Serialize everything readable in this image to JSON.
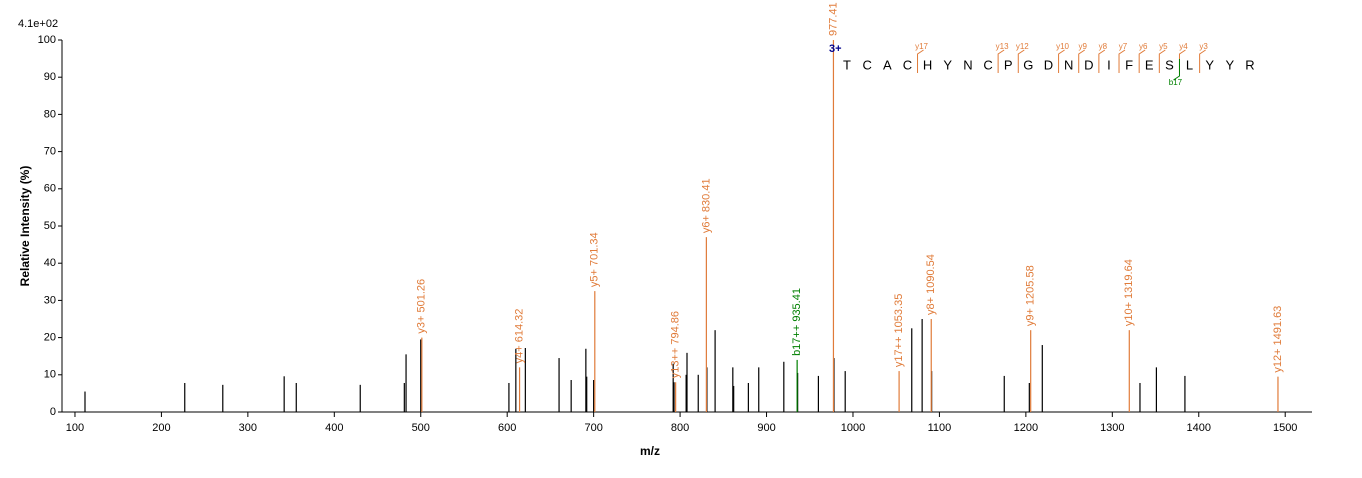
{
  "chart_data": {
    "type": "spectrum",
    "max_intensity_label": "4.1e+02",
    "xlabel": "m/z",
    "ylabel": "Relative  Intensity (%)",
    "xlim": [
      85,
      1531
    ],
    "ylim": [
      0,
      100
    ],
    "xticks": [
      100,
      200,
      300,
      400,
      500,
      600,
      700,
      800,
      900,
      1000,
      1100,
      1200,
      1300,
      1400,
      1500
    ],
    "yticks": [
      0,
      10,
      20,
      30,
      40,
      50,
      60,
      70,
      80,
      90,
      100
    ],
    "series": [
      {
        "color": "#000000",
        "x": [
          111.6,
          227,
          271,
          342,
          356,
          430,
          481,
          483,
          500,
          602,
          610,
          621,
          660,
          674,
          691,
          692,
          700,
          792,
          793,
          807,
          808,
          821,
          831,
          840.5,
          861,
          862,
          879,
          891,
          920,
          936,
          960,
          978,
          991,
          1068,
          1080,
          1091,
          1175,
          1204,
          1219,
          1332,
          1351,
          1384
        ],
        "values": [
          5.5,
          7.8,
          7.3,
          9.6,
          7.8,
          7.3,
          7.8,
          15.5,
          19.5,
          7.8,
          17,
          17.2,
          14.5,
          8.6,
          17,
          9.5,
          8.6,
          13,
          8,
          10,
          15.9,
          10,
          12,
          22,
          12,
          7,
          7.8,
          12,
          13.5,
          10.5,
          9.7,
          14.5,
          11,
          22.5,
          25,
          11,
          9.7,
          7.8,
          18,
          7.8,
          12,
          9.7
        ]
      },
      {
        "color": "#e07b39",
        "x": [
          501.26,
          614.32,
          701.34,
          794.86,
          830.41,
          977.41,
          1053.35,
          1090.54,
          1205.58,
          1319.64,
          1491.63
        ],
        "values": [
          20,
          12,
          32.5,
          8,
          47,
          100,
          11,
          25,
          22,
          22,
          9.5
        ],
        "labels": [
          "y3+ 501.26",
          "y4+ 614.32",
          "y5+ 701.34",
          "y13++ 794.86",
          "y6+ 830.41",
          "977.41",
          "y17++ 1053.35",
          "y8+ 1090.54",
          "y9+ 1205.58",
          "y10+ 1319.64",
          "y12+ 1491.63"
        ]
      },
      {
        "color": "#008000",
        "x": [
          935.41
        ],
        "values": [
          14
        ],
        "labels": [
          "b17++ 935.41"
        ]
      }
    ],
    "peptide": {
      "charge": "3+",
      "sequence": [
        "T",
        "C",
        "A",
        "C",
        "H",
        "Y",
        "N",
        "C",
        "P",
        "G",
        "D",
        "N",
        "D",
        "I",
        "F",
        "E",
        "S",
        "L",
        "Y",
        "Y",
        "R"
      ],
      "y_ions": [
        "y17",
        "y13",
        "y12",
        "y10",
        "y9",
        "y8",
        "y7",
        "y6",
        "y5",
        "y4",
        "y3"
      ],
      "b_ions": [
        "b17"
      ]
    }
  }
}
